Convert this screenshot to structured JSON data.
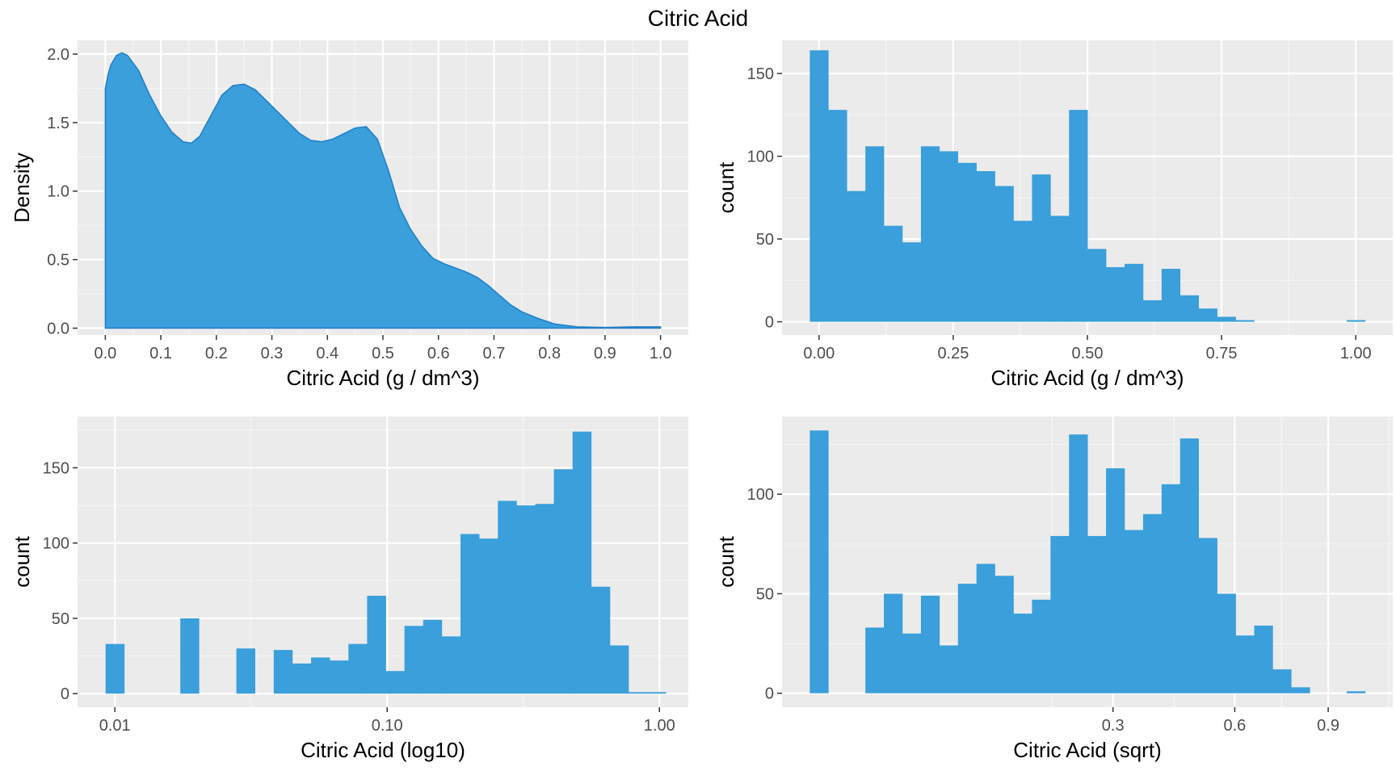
{
  "figure": {
    "title": "Citric Acid"
  },
  "chart_data": [
    {
      "id": "density",
      "type": "area",
      "xlabel": "Citric Acid (g / dm^3)",
      "ylabel": "Density",
      "xlim": [
        -0.05,
        1.05
      ],
      "ylim": [
        -0.05,
        2.1
      ],
      "x_ticks": [
        0.0,
        0.1,
        0.2,
        0.3,
        0.4,
        0.5,
        0.6,
        0.7,
        0.8,
        0.9,
        1.0
      ],
      "x_tick_labels": [
        "0.0",
        "0.1",
        "0.2",
        "0.3",
        "0.4",
        "0.5",
        "0.6",
        "0.7",
        "0.8",
        "0.9",
        "1.0"
      ],
      "y_ticks": [
        0.0,
        0.5,
        1.0,
        1.5,
        2.0
      ],
      "y_tick_labels": [
        "0.0",
        "0.5",
        "1.0",
        "1.5",
        "2.0"
      ],
      "grid": true,
      "fill_color": "#3a9fdb",
      "line_color": "#1f7ec7",
      "x": [
        0.0,
        0.005,
        0.01,
        0.02,
        0.03,
        0.04,
        0.06,
        0.08,
        0.1,
        0.12,
        0.14,
        0.155,
        0.17,
        0.19,
        0.21,
        0.23,
        0.25,
        0.27,
        0.29,
        0.31,
        0.33,
        0.35,
        0.37,
        0.39,
        0.41,
        0.43,
        0.45,
        0.47,
        0.49,
        0.51,
        0.53,
        0.55,
        0.57,
        0.59,
        0.61,
        0.63,
        0.65,
        0.67,
        0.69,
        0.71,
        0.73,
        0.75,
        0.78,
        0.81,
        0.85,
        0.9,
        0.95,
        1.0
      ],
      "y": [
        1.75,
        1.85,
        1.92,
        1.99,
        2.01,
        1.99,
        1.88,
        1.7,
        1.55,
        1.43,
        1.36,
        1.35,
        1.4,
        1.55,
        1.7,
        1.77,
        1.78,
        1.74,
        1.66,
        1.58,
        1.5,
        1.42,
        1.37,
        1.36,
        1.38,
        1.42,
        1.46,
        1.47,
        1.38,
        1.15,
        0.88,
        0.72,
        0.6,
        0.51,
        0.47,
        0.44,
        0.41,
        0.37,
        0.31,
        0.24,
        0.17,
        0.12,
        0.07,
        0.03,
        0.01,
        0.005,
        0.01,
        0.01
      ]
    },
    {
      "id": "hist-linear",
      "type": "bar",
      "xlabel": "Citric Acid (g / dm^3)",
      "ylabel": "count",
      "bin_start": -0.0172,
      "bin_width": 0.0345,
      "xlim": [
        -0.069,
        1.069
      ],
      "ylim": [
        -8,
        170
      ],
      "x_ticks": [
        0.0,
        0.25,
        0.5,
        0.75,
        1.0
      ],
      "x_tick_labels": [
        "0.00",
        "0.25",
        "0.50",
        "0.75",
        "1.00"
      ],
      "y_ticks": [
        0,
        50,
        100,
        150
      ],
      "y_tick_labels": [
        "0",
        "50",
        "100",
        "150"
      ],
      "grid": true,
      "bar_color": "#3a9fdb",
      "values": [
        164,
        128,
        79,
        106,
        58,
        48,
        106,
        103,
        96,
        91,
        82,
        61,
        89,
        64,
        128,
        44,
        33,
        35,
        13,
        32,
        16,
        8,
        3,
        1,
        0,
        0,
        0,
        0,
        0,
        1
      ]
    },
    {
      "id": "hist-log10",
      "type": "bar",
      "xlabel": "Citric Acid (log10)",
      "ylabel": "count",
      "log_x": true,
      "bin_start_log": -2.034,
      "bin_width_log": 0.0686,
      "xlim_log": [
        -2.137,
        0.106
      ],
      "ylim": [
        -9,
        184
      ],
      "x_ticks": [
        0.01,
        0.1,
        1.0
      ],
      "x_tick_labels": [
        "0.01",
        "0.10",
        "1.00"
      ],
      "y_ticks": [
        0,
        50,
        100,
        150
      ],
      "y_tick_labels": [
        "0",
        "50",
        "100",
        "150"
      ],
      "grid": true,
      "bar_color": "#3a9fdb",
      "values": [
        33,
        0,
        0,
        0,
        50,
        0,
        0,
        30,
        0,
        29,
        20,
        24,
        22,
        33,
        65,
        15,
        45,
        49,
        38,
        106,
        103,
        128,
        125,
        126,
        149,
        174,
        71,
        32,
        1,
        1
      ]
    },
    {
      "id": "hist-sqrt",
      "type": "bar",
      "xlabel": "Citric Acid (sqrt)",
      "ylabel": "count",
      "sqrt_x": true,
      "bin_start_sqrt": -0.0172,
      "bin_width_sqrt": 0.0345,
      "xlim_sqrt": [
        -0.069,
        1.069
      ],
      "ylim": [
        -7,
        139
      ],
      "x_ticks": [
        0.3,
        0.6,
        0.9
      ],
      "x_tick_labels": [
        "0.3",
        "0.6",
        "0.9"
      ],
      "y_ticks": [
        0,
        50,
        100
      ],
      "y_tick_labels": [
        "0",
        "50",
        "100"
      ],
      "grid": true,
      "bar_color": "#3a9fdb",
      "values": [
        132,
        0,
        0,
        33,
        50,
        30,
        49,
        24,
        55,
        65,
        59,
        40,
        47,
        79,
        130,
        79,
        113,
        82,
        90,
        105,
        128,
        78,
        50,
        29,
        34,
        12,
        3,
        0,
        0,
        1
      ]
    }
  ]
}
